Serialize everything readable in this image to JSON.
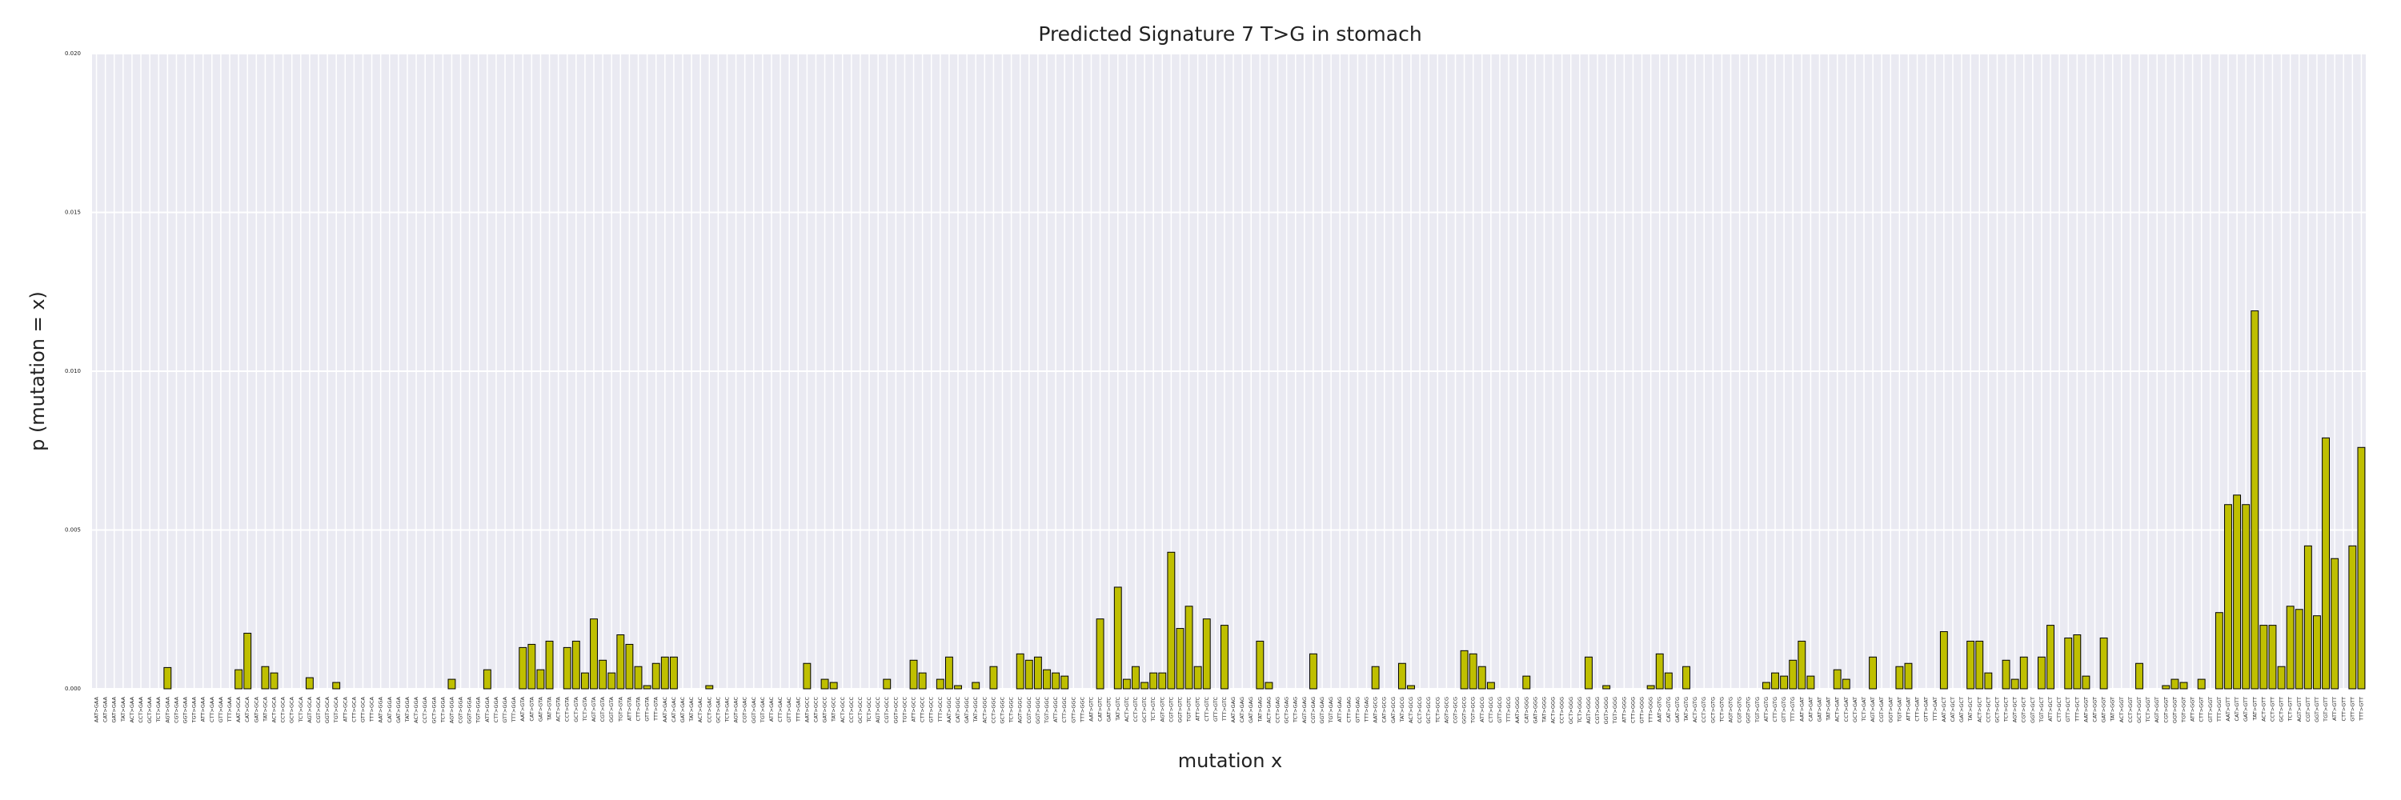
{
  "chart_data": {
    "type": "bar",
    "title": "Predicted Signature 7 T>G in stomach",
    "xlabel": "mutation x",
    "ylabel": "p (mutation = x)",
    "color": "#bfbf00",
    "edgecolor": "#000000",
    "grid": true,
    "ylim": [
      0,
      0.02
    ],
    "yticks": [
      {
        "value": 0,
        "label": "0.000"
      },
      {
        "value": 0.005,
        "label": "0.005"
      },
      {
        "value": 0.01,
        "label": "0.010"
      },
      {
        "value": 0.015,
        "label": "0.015"
      },
      {
        "value": 0.02,
        "label": "0.020"
      }
    ],
    "categories": [
      "AAT>GAA",
      "CAT>GAA",
      "GAT>GAA",
      "TAT>GAA",
      "ACT>GAA",
      "CCT>GAA",
      "GCT>GAA",
      "TCT>GAA",
      "AGT>GAA",
      "CGT>GAA",
      "GGT>GAA",
      "TGT>GAA",
      "ATT>GAA",
      "CTT>GAA",
      "GTT>GAA",
      "TTT>GAA",
      "AAT>GCA",
      "CAT>GCA",
      "GAT>GCA",
      "TAT>GCA",
      "ACT>GCA",
      "CCT>GCA",
      "GCT>GCA",
      "TCT>GCA",
      "AGT>GCA",
      "CGT>GCA",
      "GGT>GCA",
      "TGT>GCA",
      "ATT>GCA",
      "CTT>GCA",
      "GTT>GCA",
      "TTT>GCA",
      "AAT>GGA",
      "CAT>GGA",
      "GAT>GGA",
      "TAT>GGA",
      "ACT>GGA",
      "CCT>GGA",
      "GCT>GGA",
      "TCT>GGA",
      "AGT>GGA",
      "CGT>GGA",
      "GGT>GGA",
      "TGT>GGA",
      "ATT>GGA",
      "CTT>GGA",
      "GTT>GGA",
      "TTT>GGA",
      "AAT>GTA",
      "CAT>GTA",
      "GAT>GTA",
      "TAT>GTA",
      "ACT>GTA",
      "CCT>GTA",
      "GCT>GTA",
      "TCT>GTA",
      "AGT>GTA",
      "CGT>GTA",
      "GGT>GTA",
      "TGT>GTA",
      "ATT>GTA",
      "CTT>GTA",
      "GTT>GTA",
      "TTT>GTA",
      "AAT>GAC",
      "CAT>GAC",
      "GAT>GAC",
      "TAT>GAC",
      "ACT>GAC",
      "CCT>GAC",
      "GCT>GAC",
      "TCT>GAC",
      "AGT>GAC",
      "CGT>GAC",
      "GGT>GAC",
      "TGT>GAC",
      "ATT>GAC",
      "CTT>GAC",
      "GTT>GAC",
      "TTT>GAC",
      "AAT>GCC",
      "CAT>GCC",
      "GAT>GCC",
      "TAT>GCC",
      "ACT>GCC",
      "CCT>GCC",
      "GCT>GCC",
      "TCT>GCC",
      "AGT>GCC",
      "CGT>GCC",
      "GGT>GCC",
      "TGT>GCC",
      "ATT>GCC",
      "CTT>GCC",
      "GTT>GCC",
      "TTT>GCC",
      "AAT>GGC",
      "CAT>GGC",
      "GAT>GGC",
      "TAT>GGC",
      "ACT>GGC",
      "CCT>GGC",
      "GCT>GGC",
      "TCT>GGC",
      "AGT>GGC",
      "CGT>GGC",
      "GGT>GGC",
      "TGT>GGC",
      "ATT>GGC",
      "CTT>GGC",
      "GTT>GGC",
      "TTT>GGC",
      "AAT>GTC",
      "CAT>GTC",
      "GAT>GTC",
      "TAT>GTC",
      "ACT>GTC",
      "CCT>GTC",
      "GCT>GTC",
      "TCT>GTC",
      "AGT>GTC",
      "CGT>GTC",
      "GGT>GTC",
      "TGT>GTC",
      "ATT>GTC",
      "CTT>GTC",
      "GTT>GTC",
      "TTT>GTC",
      "AAT>GAG",
      "CAT>GAG",
      "GAT>GAG",
      "TAT>GAG",
      "ACT>GAG",
      "CCT>GAG",
      "GCT>GAG",
      "TCT>GAG",
      "AGT>GAG",
      "CGT>GAG",
      "GGT>GAG",
      "TGT>GAG",
      "ATT>GAG",
      "CTT>GAG",
      "GTT>GAG",
      "TTT>GAG",
      "AAT>GCG",
      "CAT>GCG",
      "GAT>GCG",
      "TAT>GCG",
      "ACT>GCG",
      "CCT>GCG",
      "GCT>GCG",
      "TCT>GCG",
      "AGT>GCG",
      "CGT>GCG",
      "GGT>GCG",
      "TGT>GCG",
      "ATT>GCG",
      "CTT>GCG",
      "GTT>GCG",
      "TTT>GCG",
      "AAT>GGG",
      "CAT>GGG",
      "GAT>GGG",
      "TAT>GGG",
      "ACT>GGG",
      "CCT>GGG",
      "GCT>GGG",
      "TCT>GGG",
      "AGT>GGG",
      "CGT>GGG",
      "GGT>GGG",
      "TGT>GGG",
      "ATT>GGG",
      "CTT>GGG",
      "GTT>GGG",
      "TTT>GGG",
      "AAT>GTG",
      "CAT>GTG",
      "GAT>GTG",
      "TAT>GTG",
      "ACT>GTG",
      "CCT>GTG",
      "GCT>GTG",
      "TCT>GTG",
      "AGT>GTG",
      "CGT>GTG",
      "GGT>GTG",
      "TGT>GTG",
      "ATT>GTG",
      "CTT>GTG",
      "GTT>GTG",
      "TTT>GTG",
      "AAT>GAT",
      "CAT>GAT",
      "GAT>GAT",
      "TAT>GAT",
      "ACT>GAT",
      "CCT>GAT",
      "GCT>GAT",
      "TCT>GAT",
      "AGT>GAT",
      "CGT>GAT",
      "GGT>GAT",
      "TGT>GAT",
      "ATT>GAT",
      "CTT>GAT",
      "GTT>GAT",
      "TTT>GAT",
      "AAT>GCT",
      "CAT>GCT",
      "GAT>GCT",
      "TAT>GCT",
      "ACT>GCT",
      "CCT>GCT",
      "GCT>GCT",
      "TCT>GCT",
      "AGT>GCT",
      "CGT>GCT",
      "GGT>GCT",
      "TGT>GCT",
      "ATT>GCT",
      "CTT>GCT",
      "GTT>GCT",
      "TTT>GCT",
      "AAT>GGT",
      "CAT>GGT",
      "GAT>GGT",
      "TAT>GGT",
      "ACT>GGT",
      "CCT>GGT",
      "GCT>GGT",
      "TCT>GGT",
      "AGT>GGT",
      "CGT>GGT",
      "GGT>GGT",
      "TGT>GGT",
      "ATT>GGT",
      "CTT>GGT",
      "GTT>GGT",
      "TTT>GGT",
      "AAT>GTT",
      "CAT>GTT",
      "GAT>GTT",
      "TAT>GTT",
      "ACT>GTT",
      "CCT>GTT",
      "GCT>GTT",
      "TCT>GTT",
      "AGT>GTT",
      "CGT>GTT",
      "GGT>GTT",
      "TGT>GTT",
      "ATT>GTT",
      "CTT>GTT",
      "GTT>GTT",
      "TTT>GTT"
    ],
    "values": [
      0,
      0,
      0,
      0,
      0,
      0,
      0,
      0,
      0.00067,
      0,
      0,
      0,
      0,
      0,
      0,
      0,
      0.0006,
      0.00175,
      0,
      0.0007,
      0.0005,
      0,
      0,
      0,
      0.00035,
      0,
      0,
      0.0002,
      0,
      0,
      0,
      0,
      0,
      0,
      0,
      0,
      0,
      0,
      0,
      0,
      0.0003,
      0,
      0,
      0,
      0.0006,
      0,
      0,
      0,
      0.0013,
      0.0014,
      0.0006,
      0.0015,
      0,
      0.0013,
      0.0015,
      0.0005,
      0.0022,
      0.0009,
      0.0005,
      0.0017,
      0.0014,
      0.0007,
      0.0001,
      0.0008,
      0.001,
      0.001,
      0,
      0,
      0,
      0.0001,
      0,
      0,
      0,
      0,
      0,
      0,
      0,
      0,
      0,
      0,
      0.0008,
      0,
      0.0003,
      0.0002,
      0,
      0,
      0,
      0,
      0,
      0.0003,
      0,
      0,
      0.0009,
      0.0005,
      0,
      0.0003,
      0.001,
      0.0001,
      0,
      0.0002,
      0,
      0.0007,
      0,
      0,
      0.0011,
      0.0009,
      0.001,
      0.0006,
      0.0005,
      0.0004,
      0,
      0,
      0,
      0.0022,
      0,
      0.0032,
      0.0003,
      0.0007,
      0.0002,
      0.0005,
      0.0005,
      0.0043,
      0.0019,
      0.0026,
      0.0007,
      0.0022,
      0,
      0.002,
      0,
      0,
      0,
      0.0015,
      0.0002,
      0,
      0,
      0,
      0,
      0.0011,
      0,
      0,
      0,
      0,
      0,
      0,
      0.0007,
      0,
      0,
      0.0008,
      0.0001,
      0,
      0,
      0,
      0,
      0,
      0.0012,
      0.0011,
      0.0007,
      0.0002,
      0,
      0,
      0,
      0.0004,
      0,
      0,
      0,
      0,
      0,
      0,
      0.001,
      0,
      0.0001,
      0,
      0,
      0,
      0,
      0.0001,
      0.0011,
      0.0005,
      0,
      0.0007,
      0,
      0,
      0,
      0,
      0,
      0,
      0,
      0,
      0.0002,
      0.0005,
      0.0004,
      0.0009,
      0.0015,
      0.0004,
      0,
      0,
      0.0006,
      0.0003,
      0,
      0,
      0.001,
      0,
      0,
      0.0007,
      0.0008,
      0,
      0,
      0,
      0.0018,
      0,
      0,
      0.0015,
      0.0015,
      0.0005,
      0,
      0.0009,
      0.0003,
      0.001,
      0,
      0.001,
      0.002,
      0,
      0.0016,
      0.0017,
      0.0004,
      0,
      0.0016,
      0,
      0,
      0,
      0.0008,
      0,
      0,
      0.0001,
      0.0003,
      0.0002,
      0,
      0.0003,
      0,
      0.0024,
      0.0058,
      0.0061,
      0.0058,
      0.0119,
      0.002,
      0.002,
      0.0007,
      0.0026,
      0.0025,
      0.0045,
      0.0023,
      0.0079,
      0.0041,
      0,
      0.0045,
      0.0076
    ]
  }
}
